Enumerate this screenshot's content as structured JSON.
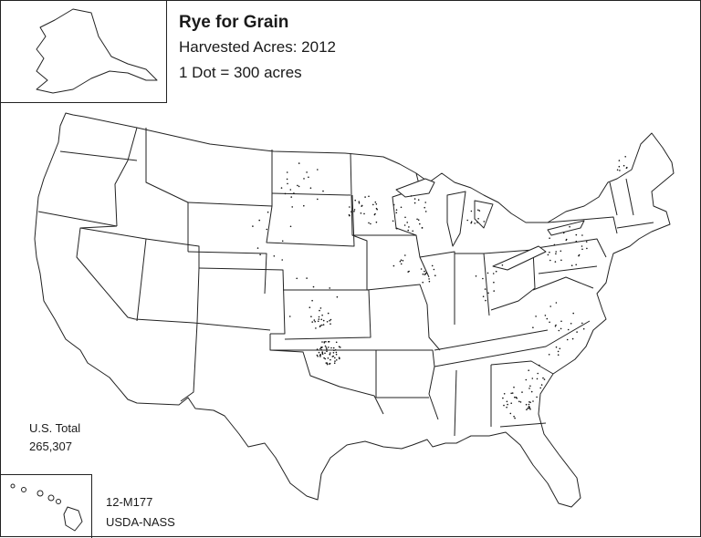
{
  "map": {
    "title": "Rye for Grain",
    "subtitle": "Harvested Acres: 2012",
    "legend": "1 Dot = 300 acres"
  },
  "total": {
    "label": "U.S. Total",
    "value": "265,307"
  },
  "footer": {
    "code": "12-M177",
    "source": "USDA-NASS"
  },
  "colors": {
    "background": "#ffffff",
    "outline": "#222222",
    "dot": "#111111"
  }
}
